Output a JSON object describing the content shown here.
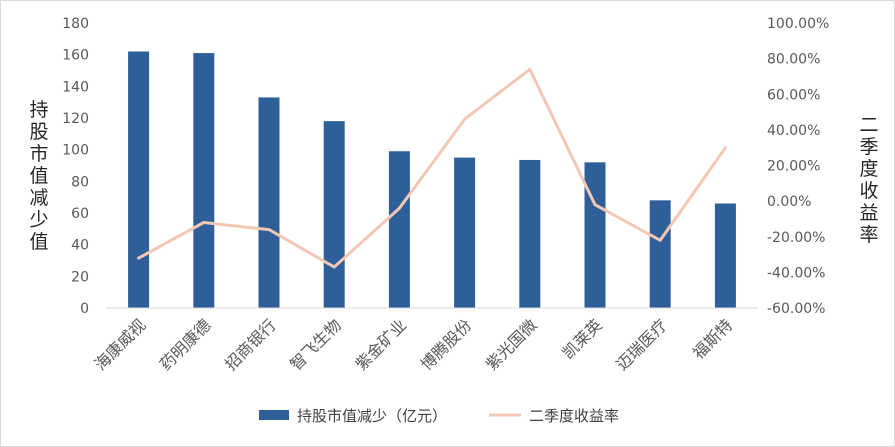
{
  "chart_data": {
    "type": "bar",
    "categories": [
      "海康威视",
      "药明康德",
      "招商银行",
      "智飞生物",
      "紫金矿业",
      "博腾股份",
      "紫光国微",
      "凯莱英",
      "迈瑞医疗",
      "福斯特"
    ],
    "series": [
      {
        "name": "持股市值减少（亿元）",
        "type": "bar",
        "axis": "left",
        "color": "#2e5f98",
        "values": [
          162,
          161,
          133,
          118,
          99,
          95,
          93.5,
          92,
          68,
          66
        ]
      },
      {
        "name": "二季度收益率",
        "type": "line",
        "axis": "right",
        "color": "#f4c7b5",
        "values": [
          -32,
          -12,
          -16,
          -37,
          -4,
          46,
          74,
          -2,
          -22,
          30
        ]
      }
    ],
    "y_left": {
      "label": "持股市值减少值",
      "min": 0,
      "max": 180,
      "ticks": [
        "0",
        "20",
        "40",
        "60",
        "80",
        "100",
        "120",
        "140",
        "160",
        "180"
      ]
    },
    "y_right": {
      "label": "二季度收益率",
      "min": -60,
      "max": 100,
      "ticks": [
        "-60.00%",
        "-40.00%",
        "-20.00%",
        "0.00%",
        "20.00%",
        "40.00%",
        "60.00%",
        "80.00%",
        "100.00%"
      ]
    },
    "legend_position": "bottom",
    "grid": false
  }
}
